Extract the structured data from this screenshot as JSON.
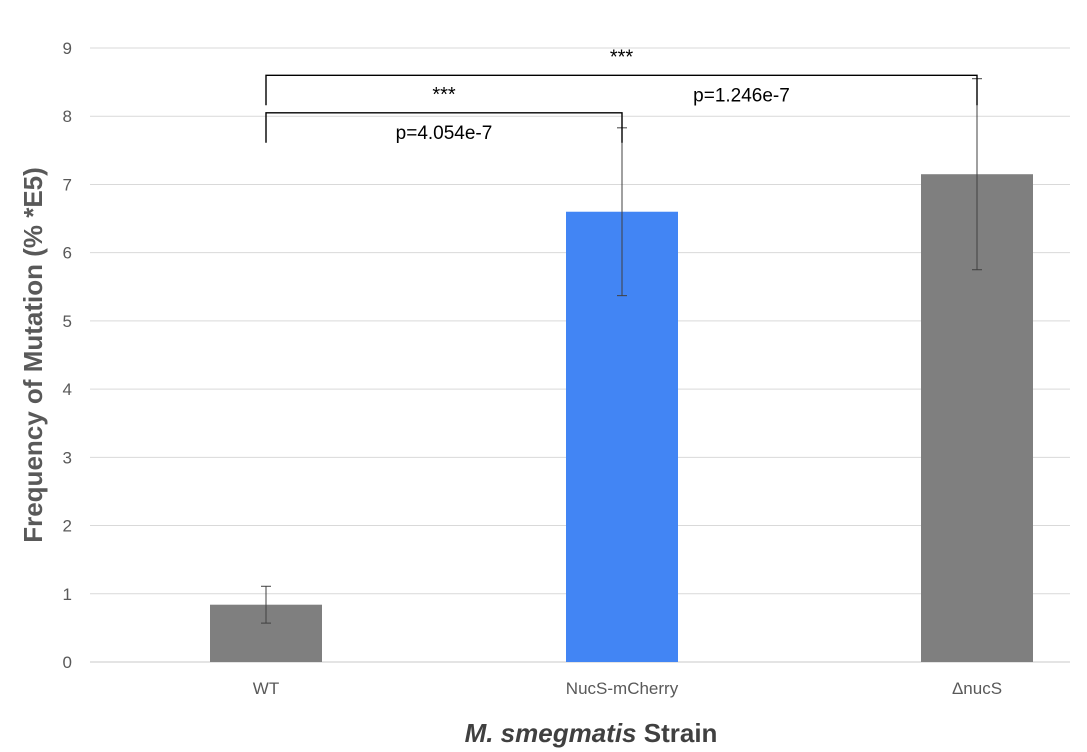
{
  "chart_data": {
    "type": "bar",
    "categories": [
      "WT",
      "NucS-mCherry",
      "ΔnucS"
    ],
    "values": [
      0.84,
      6.6,
      7.15
    ],
    "errors": [
      0.27,
      1.23,
      1.4
    ],
    "bar_colors": [
      "#7f7f7f",
      "#4285f4",
      "#7f7f7f"
    ],
    "ylim": [
      0,
      9
    ],
    "yticks": [
      "0",
      "1",
      "2",
      "3",
      "4",
      "5",
      "6",
      "7",
      "8",
      "9"
    ],
    "ylabel": "Frequency of Mutation (% *E5)",
    "xlabel_italic": "M. smegmatis",
    "xlabel_rest": " Strain",
    "grid": true,
    "significance": [
      {
        "from": "WT",
        "to": "NucS-mCherry",
        "stars": "***",
        "p": "p=4.054e-7",
        "y": 8.05
      },
      {
        "from": "WT",
        "to": "ΔnucS",
        "stars": "***",
        "p": "p=1.246e-7",
        "y": 8.6
      }
    ]
  }
}
